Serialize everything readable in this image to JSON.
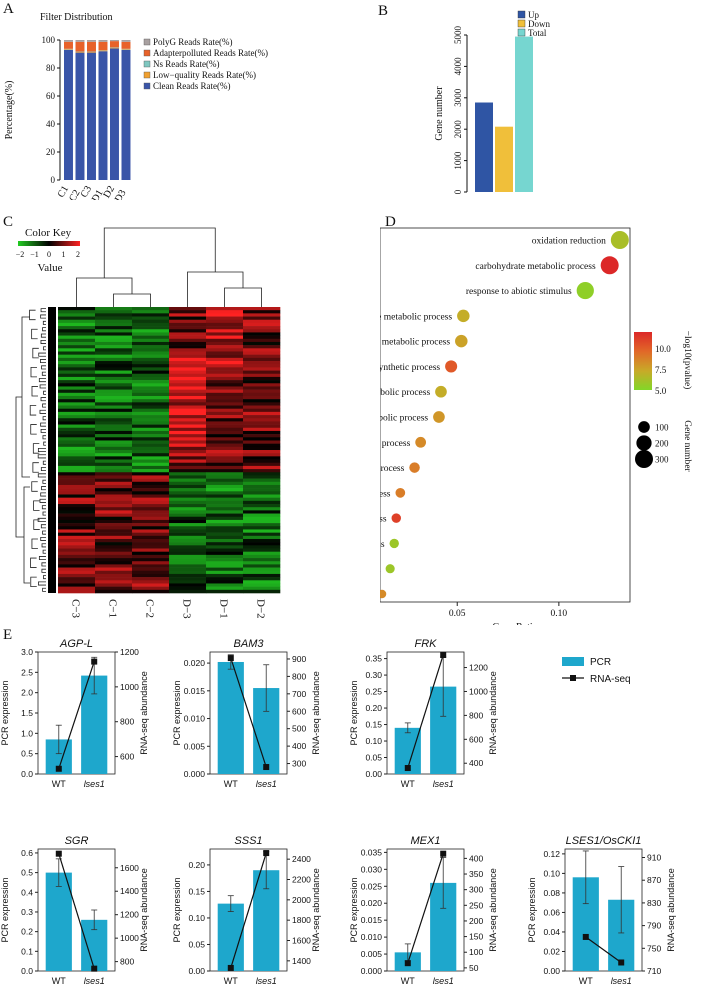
{
  "panel_letters": {
    "A": "A",
    "B": "B",
    "C": "C",
    "D": "D",
    "E": "E"
  },
  "colors": {
    "clean": "#3a55a8",
    "lowq": "#f0a030",
    "ns": "#7fc7c0",
    "adapter": "#e8622a",
    "polyg": "#a8a0a0",
    "up": "#2f55a4",
    "down": "#f0bf3a",
    "total": "#76d6d0",
    "pcr": "#1ea7cc",
    "rnaseq": "#111111",
    "heat_low": "#22cc22",
    "heat_mid": "#000000",
    "heat_high": "#ff2222"
  },
  "chart_data": [
    {
      "id": "A",
      "type": "bar",
      "stacked": true,
      "title": "Filter Distribution",
      "ylabel": "Percentage(%)",
      "ylim": [
        0,
        100
      ],
      "yticks": [
        "0",
        "20",
        "40",
        "60",
        "80",
        "100"
      ],
      "categories": [
        "C1",
        "C2",
        "C3",
        "D1",
        "D2",
        "D3"
      ],
      "series": [
        {
          "name": "Clean Reads Rate(%)",
          "values": [
            93,
            91,
            91,
            92,
            94,
            93
          ]
        },
        {
          "name": "Low−quality Reads Rate(%)",
          "values": [
            0.5,
            0.5,
            0.5,
            0.5,
            0.5,
            0.5
          ]
        },
        {
          "name": "Ns Reads Rate(%)",
          "values": [
            0.2,
            0.2,
            0.2,
            0.2,
            0.2,
            0.2
          ]
        },
        {
          "name": "Adapterpolluted Reads Rate(%)",
          "values": [
            5,
            7,
            7,
            6,
            4.5,
            5
          ]
        },
        {
          "name": "PolyG Reads Rate(%)",
          "values": [
            1.3,
            1.3,
            1.3,
            1.3,
            0.8,
            1.3
          ]
        }
      ],
      "legend_order": [
        "PolyG Reads Rate(%)",
        "Adapterpolluted Reads Rate(%)",
        "Ns Reads Rate(%)",
        "Low−quality Reads Rate(%)",
        "Clean Reads Rate(%)"
      ]
    },
    {
      "id": "B",
      "type": "bar",
      "ylabel": "Gene number",
      "ylim": [
        0,
        5000
      ],
      "yticks": [
        "0",
        "1000",
        "2000",
        "3000",
        "4000",
        "5000"
      ],
      "categories": [
        "Up",
        "Down",
        "Total"
      ],
      "values": [
        2850,
        2080,
        4950
      ]
    },
    {
      "id": "C",
      "type": "heatmap",
      "color_key_title": "Color Key",
      "color_key_label": "Value",
      "color_key_ticks": [
        "−2",
        "−1",
        "0",
        "1",
        "2"
      ],
      "columns": [
        "C−3",
        "C−1",
        "C−2",
        "D−3",
        "D−1",
        "D−2"
      ]
    },
    {
      "id": "D",
      "type": "scatter",
      "xlabel": "Gene Ratio",
      "xlim": [
        0.012,
        0.135
      ],
      "xticks": [
        0.05,
        0.1
      ],
      "xtick_labels": [
        "0.05",
        "0.10"
      ],
      "colorbar_label": "−log10(pvalue)",
      "colorbar_ticks": [
        "10.0",
        "7.5",
        "5.0"
      ],
      "size_legend_title": "Gene number",
      "size_legend": [
        "100",
        "200",
        "300"
      ],
      "points": [
        {
          "term": "oxidation reduction",
          "ratio": 0.13,
          "size": 300,
          "logp": 5.5
        },
        {
          "term": "carbohydrate metabolic process",
          "ratio": 0.125,
          "size": 300,
          "logp": 12
        },
        {
          "term": "response to abiotic stimulus",
          "ratio": 0.113,
          "size": 270,
          "logp": 4.5
        },
        {
          "term": "nucleotide metabolic process",
          "ratio": 0.053,
          "size": 120,
          "logp": 6.5
        },
        {
          "term": "alcohol metabolic process",
          "ratio": 0.052,
          "size": 120,
          "logp": 7
        },
        {
          "term": "carbohydrate biosynthetic process",
          "ratio": 0.047,
          "size": 110,
          "logp": 10
        },
        {
          "term": "monosaccharide metabolic process",
          "ratio": 0.042,
          "size": 100,
          "logp": 6.5
        },
        {
          "term": "polysaccharide metabolic process",
          "ratio": 0.041,
          "size": 100,
          "logp": 7.5
        },
        {
          "term": "glucan metabolic process",
          "ratio": 0.032,
          "size": 80,
          "logp": 8
        },
        {
          "term": "polysaccharide biosynthetic process",
          "ratio": 0.029,
          "size": 75,
          "logp": 8.5
        },
        {
          "term": "glucan biosynthetic process",
          "ratio": 0.022,
          "size": 60,
          "logp": 8.5
        },
        {
          "term": "starch metabolic process",
          "ratio": 0.02,
          "size": 55,
          "logp": 11
        },
        {
          "term": "pigment metabolic process",
          "ratio": 0.019,
          "size": 55,
          "logp": 5
        },
        {
          "term": "chloroplast organization",
          "ratio": 0.017,
          "size": 50,
          "logp": 5
        },
        {
          "term": "starch biosynthetic process",
          "ratio": 0.013,
          "size": 40,
          "logp": 8
        }
      ]
    },
    {
      "id": "E",
      "type": "bar+line",
      "legend": {
        "pcr": "PCR",
        "rnaseq": "RNA-seq"
      },
      "categories": [
        "WT",
        "lses1"
      ],
      "ylabel_left": "PCR expression",
      "ylabel_right": "RNA-seq abundance",
      "subplots": [
        {
          "title": "AGP-L",
          "italic": true,
          "pcr": [
            0.85,
            2.42
          ],
          "pcr_err": [
            0.35,
            0.45
          ],
          "ylim": [
            0,
            3.0
          ],
          "yticks": [
            "0.0",
            "0.5",
            "1.0",
            "1.5",
            "2.0",
            "2.5",
            "3.0"
          ],
          "rna": [
            530,
            1145
          ],
          "rlim": [
            500,
            1200
          ],
          "rticks": [
            "600",
            "800",
            "1000",
            "1200"
          ]
        },
        {
          "title": "BAM3",
          "italic": true,
          "pcr": [
            0.0202,
            0.0155
          ],
          "pcr_err": [
            0.0013,
            0.0042
          ],
          "ylim": [
            0,
            0.022
          ],
          "yticks": [
            "0.000",
            "0.005",
            "0.010",
            "0.015",
            "0.020"
          ],
          "rna": [
            905,
            280
          ],
          "rlim": [
            240,
            940
          ],
          "rticks": [
            "300",
            "400",
            "500",
            "600",
            "700",
            "800",
            "900"
          ]
        },
        {
          "title": "FRK",
          "italic": true,
          "pcr": [
            0.14,
            0.265
          ],
          "pcr_err": [
            0.015,
            0.09
          ],
          "ylim": [
            0,
            0.37
          ],
          "yticks": [
            "0.00",
            "0.05",
            "0.10",
            "0.15",
            "0.20",
            "0.25",
            "0.30",
            "0.35"
          ],
          "rna": [
            360,
            1305
          ],
          "rlim": [
            310,
            1330
          ],
          "rticks": [
            "400",
            "600",
            "800",
            "1000",
            "1200"
          ]
        },
        {
          "title": "SGR",
          "italic": true,
          "pcr": [
            0.5,
            0.26
          ],
          "pcr_err": [
            0.07,
            0.05
          ],
          "ylim": [
            0,
            0.62
          ],
          "yticks": [
            "0.0",
            "0.1",
            "0.2",
            "0.3",
            "0.4",
            "0.5",
            "0.6"
          ],
          "rna": [
            1720,
            740
          ],
          "rlim": [
            720,
            1760
          ],
          "rticks": [
            "800",
            "1000",
            "1200",
            "1400",
            "1600"
          ]
        },
        {
          "title": "SSS1",
          "italic": true,
          "pcr": [
            0.127,
            0.19
          ],
          "pcr_err": [
            0.015,
            0.035
          ],
          "ylim": [
            0,
            0.23
          ],
          "yticks": [
            "0.00",
            "0.05",
            "0.10",
            "0.15",
            "0.20"
          ],
          "rna": [
            1330,
            2460
          ],
          "rlim": [
            1300,
            2500
          ],
          "rticks": [
            "1400",
            "1600",
            "1800",
            "2000",
            "2200",
            "2400"
          ]
        },
        {
          "title": "MEX1",
          "italic": true,
          "pcr": [
            0.0055,
            0.026
          ],
          "pcr_err": [
            0.0025,
            0.0075
          ],
          "ylim": [
            0,
            0.036
          ],
          "yticks": [
            "0.000",
            "0.005",
            "0.010",
            "0.015",
            "0.020",
            "0.025",
            "0.030",
            "0.035"
          ],
          "rna": [
            65,
            415
          ],
          "rlim": [
            40,
            430
          ],
          "rticks": [
            "50",
            "100",
            "150",
            "200",
            "250",
            "300",
            "350",
            "400"
          ]
        },
        {
          "title": "LSES1/OsCKI1",
          "italic": true,
          "pcr": [
            0.096,
            0.073
          ],
          "pcr_err": [
            0.027,
            0.034
          ],
          "ylim": [
            0,
            0.125
          ],
          "yticks": [
            "0.00",
            "0.02",
            "0.04",
            "0.06",
            "0.08",
            "0.10",
            "0.12"
          ],
          "rna": [
            770,
            725
          ],
          "rlim": [
            710,
            925
          ],
          "rticks": [
            "710",
            "750",
            "790",
            "830",
            "870",
            "910"
          ]
        }
      ]
    }
  ]
}
